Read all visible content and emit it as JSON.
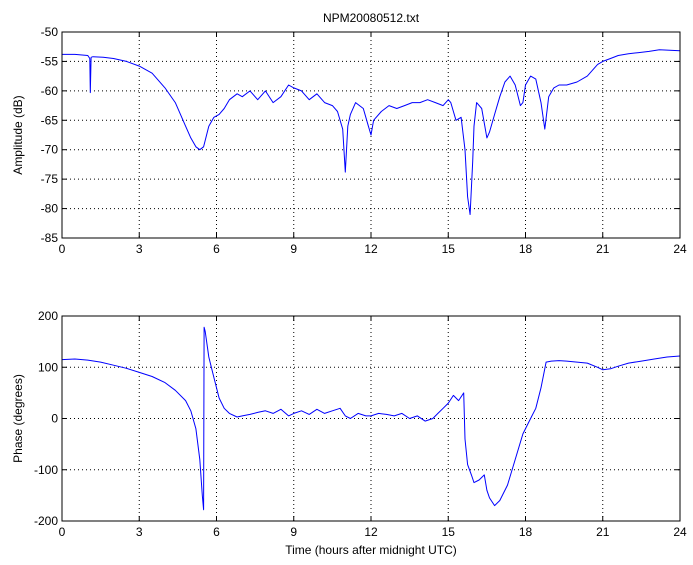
{
  "chart_data": [
    {
      "type": "line",
      "title": "NPM20080512.txt",
      "xlabel": "",
      "ylabel": "Amplitude (dB)",
      "xlim": [
        0,
        24
      ],
      "ylim": [
        -85,
        -50
      ],
      "xticks": [
        0,
        3,
        6,
        9,
        12,
        15,
        18,
        21,
        24
      ],
      "yticks": [
        -85,
        -80,
        -75,
        -70,
        -65,
        -60,
        -55,
        -50
      ],
      "grid": true,
      "line_color": "#0000ff",
      "series": [
        {
          "x": [
            0,
            0.5,
            1.0,
            1.08,
            1.1,
            1.13,
            1.2,
            1.6,
            2.0,
            2.5,
            3.0,
            3.5,
            4.0,
            4.4,
            4.8,
            5.0,
            5.2,
            5.35,
            5.5,
            5.7,
            5.9,
            6.1,
            6.3,
            6.5,
            6.8,
            7.0,
            7.3,
            7.6,
            7.9,
            8.2,
            8.5,
            8.8,
            9.0,
            9.3,
            9.6,
            9.9,
            10.2,
            10.5,
            10.7,
            10.9,
            11.0,
            11.1,
            11.2,
            11.4,
            11.7,
            11.9,
            12.0,
            12.1,
            12.4,
            12.7,
            13.0,
            13.3,
            13.6,
            13.9,
            14.2,
            14.5,
            14.8,
            15.0,
            15.1,
            15.2,
            15.3,
            15.5,
            15.65,
            15.75,
            15.85,
            15.95,
            16.0,
            16.1,
            16.3,
            16.5,
            16.6,
            16.8,
            17.0,
            17.2,
            17.4,
            17.6,
            17.8,
            17.9,
            18.0,
            18.2,
            18.4,
            18.6,
            18.75,
            18.9,
            19.1,
            19.3,
            19.6,
            20.0,
            20.4,
            20.8,
            21.0,
            21.3,
            21.6,
            22.0,
            22.4,
            22.8,
            23.2,
            23.6,
            24.0
          ],
          "y": [
            -53.8,
            -53.8,
            -54.0,
            -54.5,
            -60.3,
            -54.3,
            -54.2,
            -54.3,
            -54.5,
            -55.0,
            -55.8,
            -57.0,
            -59.5,
            -62.0,
            -66.0,
            -68.0,
            -69.5,
            -70.0,
            -69.5,
            -66.0,
            -64.5,
            -64.0,
            -63.0,
            -61.5,
            -60.5,
            -61.0,
            -60.0,
            -61.5,
            -60.0,
            -62.0,
            -61.0,
            -59.0,
            -59.5,
            -60.0,
            -61.5,
            -60.5,
            -62.0,
            -62.5,
            -63.5,
            -66.5,
            -73.8,
            -66.0,
            -64.0,
            -62.0,
            -63.0,
            -66.0,
            -67.5,
            -65.0,
            -63.5,
            -62.5,
            -63.0,
            -62.5,
            -62.0,
            -62.0,
            -61.5,
            -62.0,
            -62.5,
            -61.5,
            -62.0,
            -63.5,
            -65.0,
            -64.5,
            -70.0,
            -78.0,
            -81.0,
            -72.0,
            -66.0,
            -62.0,
            -63.0,
            -68.0,
            -67.0,
            -64.0,
            -61.0,
            -58.5,
            -57.5,
            -59.0,
            -62.5,
            -62.0,
            -59.0,
            -57.5,
            -58.0,
            -62.0,
            -66.5,
            -61.0,
            -59.5,
            -59.0,
            -59.0,
            -58.5,
            -57.5,
            -55.5,
            -55.0,
            -54.5,
            -54.0,
            -53.7,
            -53.5,
            -53.3,
            -53.0,
            -53.1,
            -53.2
          ]
        }
      ]
    },
    {
      "type": "line",
      "title": "",
      "xlabel": "Time (hours after midnight UTC)",
      "ylabel": "Phase (degrees)",
      "xlim": [
        0,
        24
      ],
      "ylim": [
        -200,
        200
      ],
      "xticks": [
        0,
        3,
        6,
        9,
        12,
        15,
        18,
        21,
        24
      ],
      "yticks": [
        -200,
        -100,
        0,
        100,
        200
      ],
      "grid": true,
      "line_color": "#0000ff",
      "series": [
        {
          "x": [
            0,
            0.5,
            1.0,
            1.5,
            2.0,
            2.5,
            3.0,
            3.5,
            4.0,
            4.4,
            4.8,
            5.0,
            5.2,
            5.35,
            5.45,
            5.5,
            5.52,
            5.56,
            5.7,
            5.9,
            6.1,
            6.3,
            6.5,
            6.8,
            7.0,
            7.3,
            7.6,
            7.9,
            8.2,
            8.5,
            8.8,
            9.0,
            9.3,
            9.6,
            9.9,
            10.2,
            10.5,
            10.8,
            11.0,
            11.2,
            11.5,
            11.8,
            12.0,
            12.3,
            12.6,
            12.9,
            13.2,
            13.5,
            13.8,
            14.1,
            14.4,
            14.6,
            14.8,
            15.0,
            15.2,
            15.4,
            15.6,
            15.65,
            15.75,
            15.9,
            16.0,
            16.2,
            16.4,
            16.5,
            16.6,
            16.8,
            17.0,
            17.3,
            17.6,
            17.9,
            18.2,
            18.4,
            18.6,
            18.8,
            19.0,
            19.3,
            19.6,
            20.0,
            20.4,
            20.8,
            21.0,
            21.3,
            21.6,
            22.0,
            22.5,
            23.0,
            23.5,
            24.0
          ],
          "y": [
            115,
            116,
            114,
            110,
            104,
            98,
            90,
            82,
            70,
            55,
            35,
            15,
            -20,
            -80,
            -150,
            -178,
            178,
            170,
            120,
            80,
            40,
            20,
            10,
            3,
            5,
            8,
            12,
            15,
            10,
            18,
            5,
            10,
            15,
            8,
            18,
            10,
            15,
            20,
            5,
            0,
            10,
            5,
            5,
            10,
            8,
            5,
            10,
            0,
            5,
            -5,
            0,
            10,
            20,
            30,
            45,
            35,
            50,
            -40,
            -90,
            -110,
            -125,
            -120,
            -110,
            -140,
            -155,
            -170,
            -160,
            -130,
            -80,
            -30,
            0,
            20,
            60,
            110,
            112,
            113,
            112,
            110,
            108,
            100,
            95,
            97,
            102,
            108,
            112,
            116,
            120,
            122
          ]
        }
      ]
    }
  ]
}
